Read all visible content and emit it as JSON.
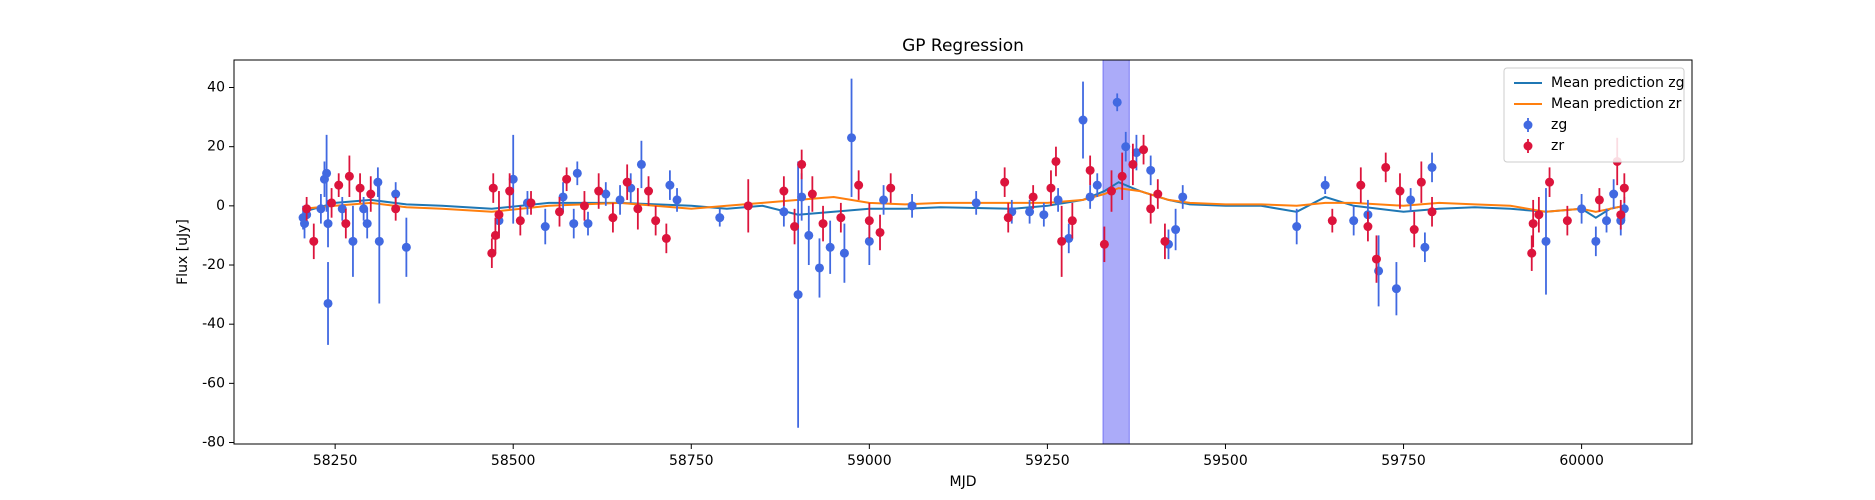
{
  "chart_data": {
    "type": "scatter",
    "title": "GP Regression",
    "xlabel": "MJD",
    "ylabel": "Flux [uJy]",
    "xlim": [
      58108,
      60155
    ],
    "ylim": [
      -80.5,
      49.3
    ],
    "xticks": [
      58250,
      58500,
      58750,
      59000,
      59250,
      59500,
      59750,
      60000
    ],
    "yticks": [
      -80,
      -60,
      -40,
      -20,
      0,
      20,
      40
    ],
    "legend": "upper right",
    "highlight": [
      59328,
      59365
    ],
    "highlight_color": "#0000ee",
    "lines": [
      {
        "name": "Mean prediction zg",
        "color": "#1f77b4",
        "x": [
          58205,
          58250,
          58300,
          58350,
          58400,
          58470,
          58550,
          58650,
          58750,
          58800,
          58850,
          58900,
          58950,
          59000,
          59050,
          59100,
          59200,
          59250,
          59300,
          59330,
          59350,
          59380,
          59420,
          59450,
          59500,
          59550,
          59600,
          59640,
          59680,
          59750,
          59800,
          59850,
          59900,
          59950,
          60000,
          60020,
          60040,
          60060
        ],
        "values": [
          -2,
          1,
          2,
          0.5,
          0,
          -1,
          1,
          1,
          0,
          -1,
          0,
          -3,
          -2,
          -1,
          -1,
          -0.5,
          -1,
          0,
          2,
          5,
          8,
          5,
          2,
          0.5,
          0,
          0,
          -2,
          3,
          0,
          -2,
          -1,
          -0.5,
          -1,
          -2,
          -1,
          -4,
          -1,
          0
        ]
      },
      {
        "name": "Mean prediction zr",
        "color": "#ff7f0e",
        "x": [
          58205,
          58250,
          58300,
          58350,
          58400,
          58470,
          58550,
          58650,
          58750,
          58800,
          58850,
          58900,
          58950,
          59000,
          59050,
          59100,
          59200,
          59250,
          59300,
          59330,
          59350,
          59380,
          59420,
          59450,
          59500,
          59550,
          59600,
          59640,
          59680,
          59750,
          59800,
          59850,
          59900,
          59950,
          60000,
          60020,
          60040,
          60060
        ],
        "values": [
          -1,
          0,
          1,
          -0.5,
          -1,
          -2,
          0,
          1,
          -1,
          0,
          1,
          2,
          3,
          1,
          0.5,
          1,
          1,
          1,
          2,
          4,
          6,
          5,
          2,
          1,
          0.5,
          0.5,
          0,
          1,
          1,
          0,
          1,
          0.5,
          0,
          -2,
          -1,
          -2,
          -1,
          0
        ]
      }
    ],
    "series": [
      {
        "name": "zg",
        "color": "#4169e1",
        "x": [
          58205,
          58207,
          58210,
          58230,
          58235,
          58238,
          58240,
          58240,
          58260,
          58275,
          58290,
          58295,
          58310,
          58312,
          58335,
          58350,
          58480,
          58500,
          58520,
          58545,
          58570,
          58585,
          58590,
          58605,
          58630,
          58650,
          58665,
          58680,
          58720,
          58730,
          58790,
          58880,
          58900,
          58905,
          58915,
          58930,
          58945,
          58965,
          58975,
          59000,
          59020,
          59060,
          59150,
          59200,
          59225,
          59245,
          59265,
          59280,
          59300,
          59310,
          59320,
          59348,
          59360,
          59375,
          59395,
          59420,
          59430,
          59440,
          59600,
          59640,
          59680,
          59700,
          59715,
          59740,
          59760,
          59780,
          59790,
          59950,
          60000,
          60020,
          60035,
          60045,
          60055,
          60060
        ],
        "values": [
          -4,
          -6,
          -3,
          -1,
          9,
          11,
          -6,
          -33,
          -1,
          -12,
          -1,
          -6,
          8,
          -12,
          4,
          -14,
          -5,
          9,
          1,
          -7,
          3,
          -6,
          11,
          -6,
          4,
          2,
          6,
          14,
          7,
          2,
          -4,
          -2,
          -30,
          3,
          -10,
          -21,
          -14,
          -16,
          23,
          -12,
          2,
          0,
          1,
          -2,
          -2,
          -3,
          2,
          -11,
          29,
          3,
          7,
          35,
          20,
          18,
          12,
          -13,
          -8,
          3,
          -7,
          7,
          -5,
          -3,
          -22,
          -28,
          2,
          -14,
          13,
          -12,
          -1,
          -12,
          -5,
          4,
          -5,
          -1
        ],
        "errors": [
          4,
          5,
          4,
          5,
          6,
          13,
          8,
          14,
          4,
          12,
          4,
          5,
          5,
          21,
          4,
          10,
          5,
          15,
          4,
          6,
          5,
          5,
          4,
          4,
          4,
          5,
          5,
          8,
          5,
          4,
          3,
          5,
          45,
          8,
          10,
          10,
          9,
          10,
          20,
          8,
          5,
          4,
          4,
          4,
          4,
          4,
          4,
          5,
          13,
          4,
          4,
          3,
          5,
          6,
          5,
          5,
          7,
          4,
          6,
          3,
          5,
          5,
          12,
          9,
          4,
          5,
          5,
          18,
          5,
          5,
          4,
          5,
          5,
          4
        ]
      },
      {
        "name": "zr",
        "color": "#dc143c",
        "x": [
          58210,
          58220,
          58245,
          58255,
          58265,
          58270,
          58285,
          58300,
          58335,
          58470,
          58472,
          58475,
          58480,
          58495,
          58510,
          58525,
          58565,
          58575,
          58600,
          58620,
          58640,
          58660,
          58675,
          58690,
          58700,
          58715,
          58830,
          58880,
          58895,
          58905,
          58920,
          58935,
          58960,
          58985,
          59000,
          59015,
          59030,
          59190,
          59195,
          59230,
          59255,
          59262,
          59270,
          59285,
          59310,
          59330,
          59340,
          59355,
          59370,
          59385,
          59395,
          59405,
          59415,
          59650,
          59690,
          59700,
          59712,
          59725,
          59745,
          59765,
          59775,
          59790,
          59930,
          59932,
          59940,
          59955,
          59980,
          60025,
          60050,
          60055,
          60060
        ],
        "values": [
          -1,
          -12,
          1,
          7,
          -6,
          10,
          6,
          4,
          -1,
          -16,
          6,
          -10,
          -3,
          5,
          -5,
          1,
          -2,
          9,
          0,
          5,
          -4,
          8,
          -1,
          5,
          -5,
          -11,
          0,
          5,
          -7,
          14,
          4,
          -6,
          -4,
          7,
          -5,
          -9,
          6,
          8,
          -4,
          3,
          6,
          15,
          -12,
          -5,
          12,
          -13,
          5,
          10,
          14,
          19,
          -1,
          4,
          -12,
          -5,
          7,
          -7,
          -18,
          13,
          5,
          -8,
          8,
          -2,
          -16,
          -6,
          -3,
          8,
          -5,
          2,
          15,
          -3,
          6
        ],
        "errors": [
          4,
          6,
          5,
          4,
          5,
          7,
          5,
          6,
          4,
          5,
          5,
          6,
          8,
          6,
          5,
          4,
          5,
          4,
          5,
          6,
          5,
          6,
          7,
          5,
          5,
          5,
          9,
          5,
          6,
          5,
          6,
          6,
          5,
          5,
          6,
          6,
          5,
          5,
          5,
          4,
          6,
          5,
          12,
          6,
          5,
          6,
          7,
          8,
          7,
          5,
          5,
          5,
          6,
          4,
          6,
          5,
          8,
          5,
          6,
          6,
          7,
          5,
          6,
          8,
          6,
          5,
          5,
          4,
          8,
          5,
          5
        ]
      }
    ]
  }
}
